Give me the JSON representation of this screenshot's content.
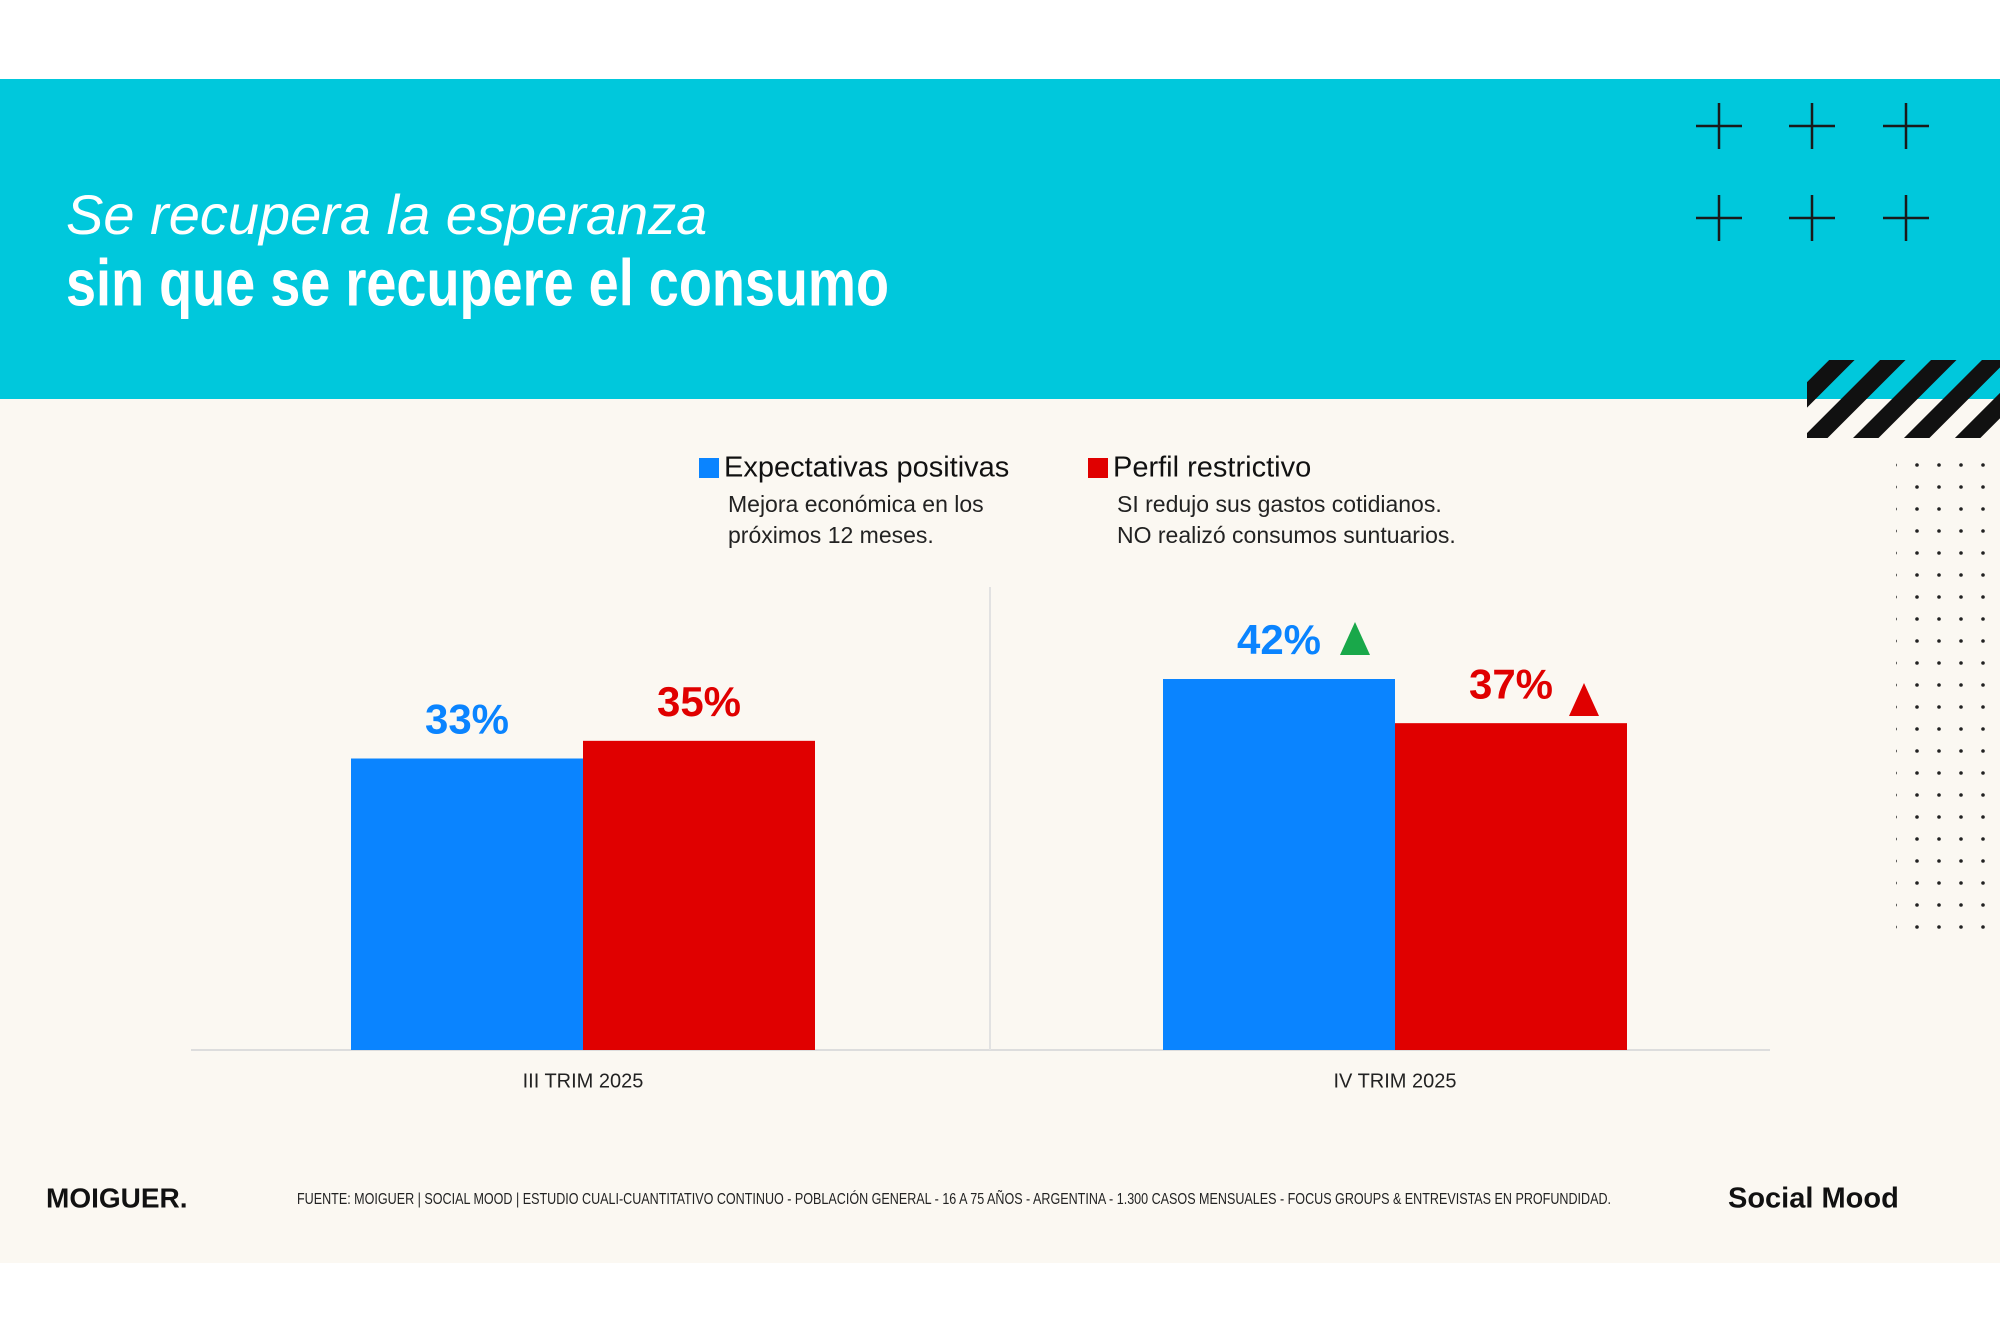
{
  "header": {
    "title_line1": "Se recupera la esperanza",
    "title_line2": "sin que se recupere el consumo"
  },
  "chart_data": {
    "type": "bar",
    "categories": [
      "III TRIM 2025",
      "IV TRIM 2025"
    ],
    "series": [
      {
        "name": "Expectativas positivas",
        "description": [
          "Mejora económica en los",
          "próximos 12 meses."
        ],
        "color": "#0A84FF",
        "values": [
          33,
          42
        ],
        "value_labels": [
          "33%",
          "42%"
        ]
      },
      {
        "name": "Perfil restrictivo",
        "description": [
          "SI redujo sus gastos cotidianos.",
          "NO realizó consumos suntuarios."
        ],
        "color": "#E00000",
        "values": [
          35,
          37
        ],
        "value_labels": [
          "35%",
          "37%"
        ]
      }
    ]
  },
  "footer": {
    "logo": "MOIGUER.",
    "source": "FUENTE:  MOIGUER | SOCIAL MOOD | ESTUDIO CUALI-CUANTITATIVO CONTINUO - POBLACIÓN GENERAL - 16 A 75 AÑOS - ARGENTINA -  1.300 CASOS MENSUALES - FOCUS GROUPS & ENTREVISTAS EN PROFUNDIDAD.",
    "brand": "Social Mood"
  }
}
